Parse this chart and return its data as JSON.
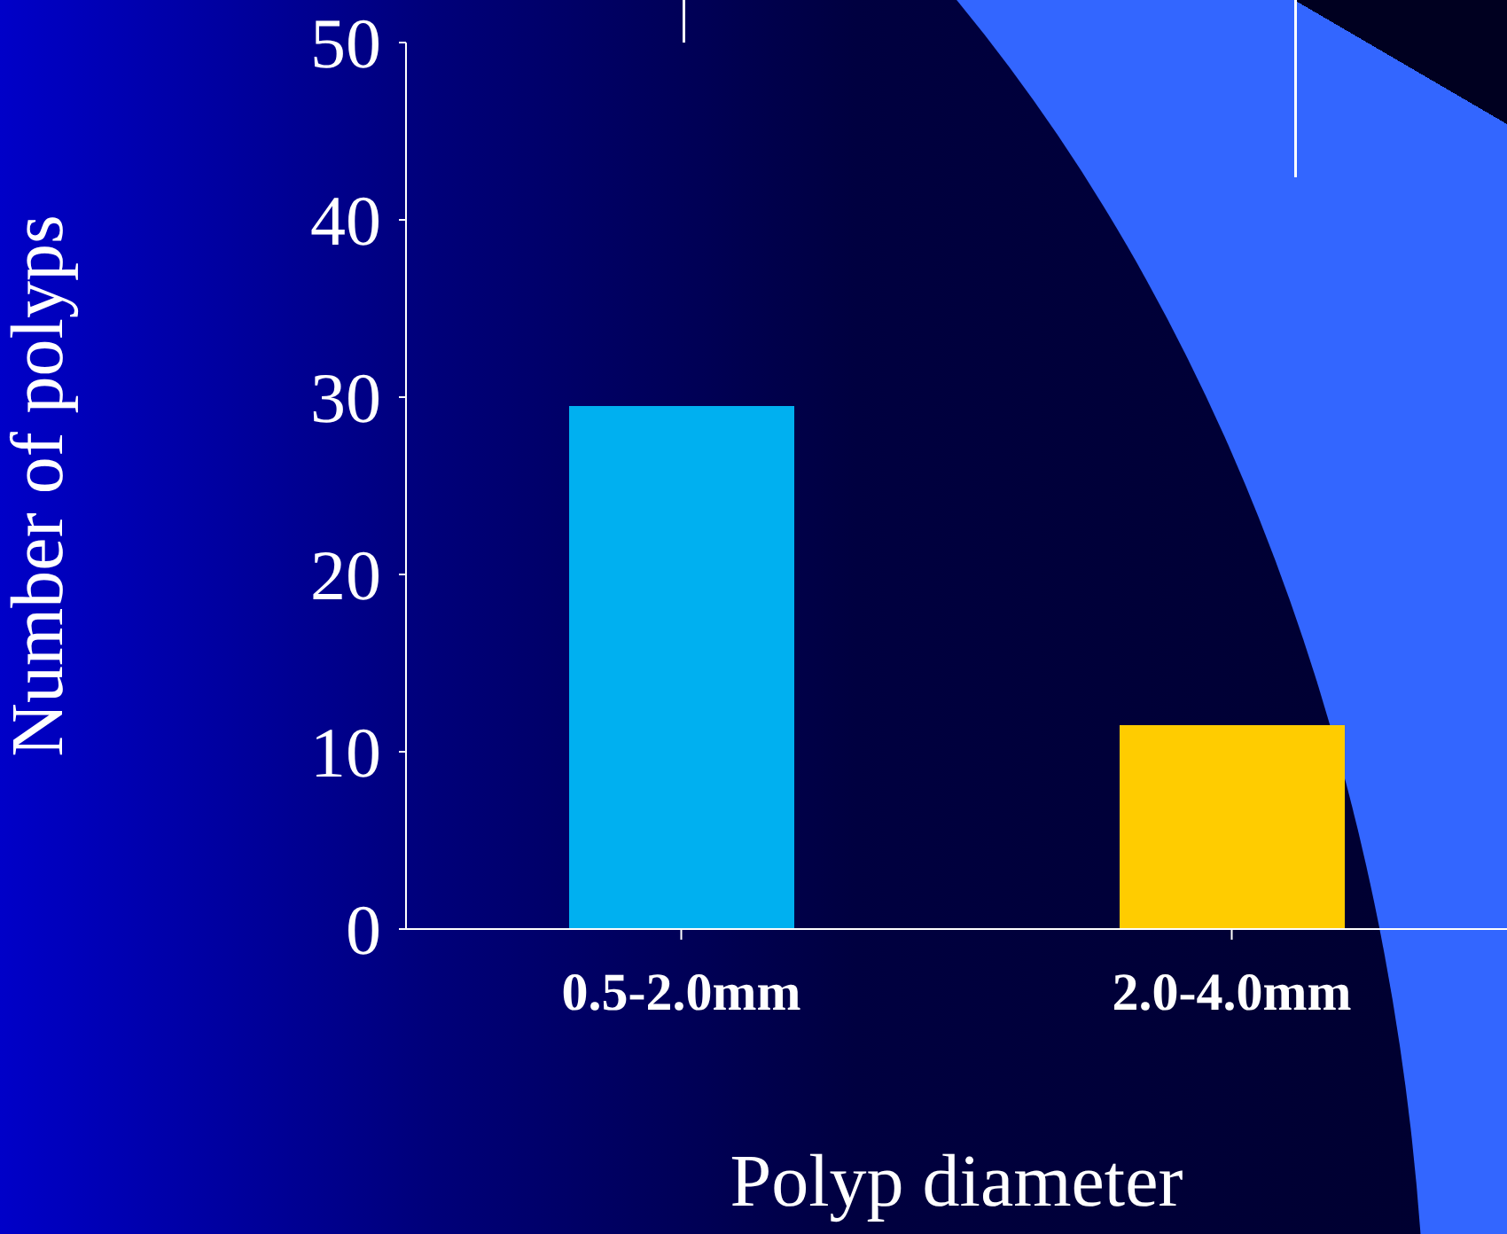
{
  "chart_data": {
    "type": "bar",
    "xlabel": "Polyp diameter",
    "ylabel": "Number of polyps",
    "categories": [
      "0.5-2.0mm",
      "2.0-4.0mm"
    ],
    "values": [
      29.5,
      11.5
    ],
    "colors": [
      "#00b0f0",
      "#ffcc00"
    ],
    "ylim": [
      0,
      50
    ],
    "yticks": [
      0,
      10,
      20,
      30,
      40,
      50
    ]
  }
}
